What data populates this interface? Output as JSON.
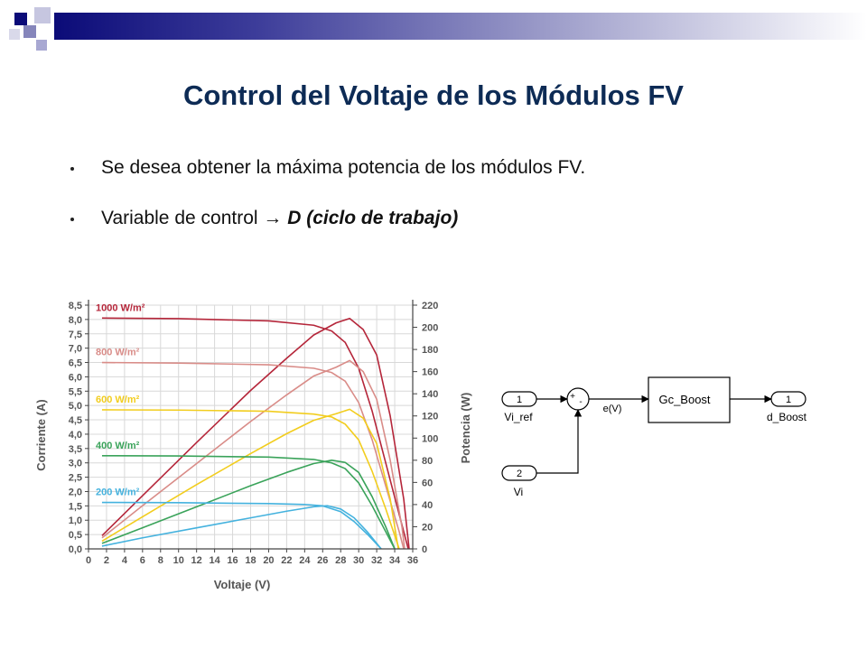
{
  "slide": {
    "title": "Control del Voltaje de los Módulos FV",
    "bullets": [
      {
        "text": "Se desea obtener la máxima potencia de los módulos FV."
      },
      {
        "text_before": "Variable de control ",
        "arrow": "→",
        "text_emphasis": "D (ciclo de trabajo)"
      }
    ]
  },
  "chart_data": {
    "type": "line",
    "xlabel": "Voltaje (V)",
    "ylabel": "Corriente  (A)",
    "y2label": "Potencia (W)",
    "xlim": [
      0,
      36
    ],
    "ylim": [
      0,
      8.5
    ],
    "y2lim": [
      0,
      220
    ],
    "x_ticks": [
      "0",
      "2",
      "4",
      "6",
      "8",
      "10",
      "12",
      "14",
      "16",
      "18",
      "20",
      "22",
      "24",
      "26",
      "28",
      "30",
      "32",
      "34",
      "36"
    ],
    "y_ticks": [
      "0,0",
      "0,5",
      "1,0",
      "1,5",
      "2,0",
      "2,5",
      "3,0",
      "3,5",
      "4,0",
      "4,5",
      "5,0",
      "5,5",
      "6,0",
      "6,5",
      "7,0",
      "7,5",
      "8,0",
      "8,5"
    ],
    "y2_ticks": [
      "0",
      "20",
      "40",
      "60",
      "80",
      "100",
      "120",
      "140",
      "160",
      "180",
      "200",
      "220"
    ],
    "series": [
      {
        "name": "1000 W/m²",
        "color": "#b5263a",
        "current": [
          [
            1.5,
            8.05
          ],
          [
            10,
            8.03
          ],
          [
            20,
            7.95
          ],
          [
            25,
            7.8
          ],
          [
            27,
            7.6
          ],
          [
            28.5,
            7.2
          ],
          [
            30,
            6.3
          ],
          [
            31.5,
            4.8
          ],
          [
            33,
            3.0
          ],
          [
            34.5,
            1.2
          ],
          [
            35.5,
            0
          ]
        ],
        "power": [
          [
            1.5,
            12
          ],
          [
            6,
            48
          ],
          [
            12,
            96
          ],
          [
            18,
            143
          ],
          [
            22,
            172
          ],
          [
            25,
            193
          ],
          [
            27.5,
            204
          ],
          [
            29,
            208
          ],
          [
            30.5,
            198
          ],
          [
            32,
            175
          ],
          [
            33.5,
            120
          ],
          [
            35,
            45
          ],
          [
            35.6,
            0
          ]
        ]
      },
      {
        "name": "800 W/m²",
        "color": "#d98c88",
        "current": [
          [
            1.5,
            6.5
          ],
          [
            10,
            6.48
          ],
          [
            20,
            6.42
          ],
          [
            25,
            6.3
          ],
          [
            27,
            6.15
          ],
          [
            28.5,
            5.85
          ],
          [
            30,
            5.1
          ],
          [
            31.5,
            3.8
          ],
          [
            33,
            2.2
          ],
          [
            34.5,
            0.6
          ],
          [
            35,
            0
          ]
        ],
        "power": [
          [
            1.5,
            10
          ],
          [
            6,
            39
          ],
          [
            12,
            77
          ],
          [
            18,
            115
          ],
          [
            22,
            139
          ],
          [
            25,
            156
          ],
          [
            27.5,
            164
          ],
          [
            29,
            170
          ],
          [
            30.5,
            160
          ],
          [
            32,
            135
          ],
          [
            33.5,
            80
          ],
          [
            34.8,
            20
          ],
          [
            35.1,
            0
          ]
        ]
      },
      {
        "name": "600 W/m²",
        "color": "#f2cd1e",
        "current": [
          [
            1.5,
            4.85
          ],
          [
            10,
            4.84
          ],
          [
            20,
            4.8
          ],
          [
            25,
            4.7
          ],
          [
            27,
            4.6
          ],
          [
            28.5,
            4.35
          ],
          [
            30,
            3.8
          ],
          [
            31.5,
            2.7
          ],
          [
            33,
            1.4
          ],
          [
            34.5,
            0
          ]
        ],
        "power": [
          [
            1.5,
            7
          ],
          [
            6,
            29
          ],
          [
            12,
            58
          ],
          [
            18,
            86
          ],
          [
            22,
            104
          ],
          [
            25,
            116
          ],
          [
            27.5,
            122
          ],
          [
            29,
            126
          ],
          [
            30.5,
            118
          ],
          [
            32,
            95
          ],
          [
            33.5,
            45
          ],
          [
            34.4,
            0
          ]
        ]
      },
      {
        "name": "400 W/m²",
        "color": "#3aa35a",
        "current": [
          [
            1.5,
            3.25
          ],
          [
            10,
            3.24
          ],
          [
            20,
            3.2
          ],
          [
            25,
            3.12
          ],
          [
            27,
            3.0
          ],
          [
            28.5,
            2.8
          ],
          [
            30,
            2.3
          ],
          [
            31.5,
            1.5
          ],
          [
            33,
            0.6
          ],
          [
            34,
            0
          ]
        ],
        "power": [
          [
            1.5,
            5
          ],
          [
            6,
            19
          ],
          [
            12,
            38
          ],
          [
            18,
            57
          ],
          [
            22,
            69
          ],
          [
            25,
            77
          ],
          [
            27,
            80
          ],
          [
            28.5,
            78
          ],
          [
            30,
            69
          ],
          [
            31.5,
            47
          ],
          [
            33,
            20
          ],
          [
            34,
            0
          ]
        ]
      },
      {
        "name": "200 W/m²",
        "color": "#44b2de",
        "current": [
          [
            1.5,
            1.62
          ],
          [
            10,
            1.61
          ],
          [
            20,
            1.58
          ],
          [
            24,
            1.55
          ],
          [
            26,
            1.5
          ],
          [
            28,
            1.3
          ],
          [
            29.5,
            0.95
          ],
          [
            31,
            0.5
          ],
          [
            32.5,
            0
          ]
        ],
        "power": [
          [
            1.5,
            2.5
          ],
          [
            6,
            10
          ],
          [
            12,
            19
          ],
          [
            18,
            28
          ],
          [
            22,
            34
          ],
          [
            25,
            38
          ],
          [
            26.5,
            39
          ],
          [
            28,
            36
          ],
          [
            29.5,
            28
          ],
          [
            31,
            15
          ],
          [
            32.5,
            0
          ]
        ]
      }
    ]
  },
  "diagram": {
    "in1_number": "1",
    "in1_label": "Vi_ref",
    "in2_number": "2",
    "in2_label": "Vi",
    "sum_plus": "+",
    "sum_minus": "-",
    "error_label": "e(V)",
    "controller_label": "Gc_Boost",
    "out_number": "1",
    "out_label": "d_Boost"
  }
}
